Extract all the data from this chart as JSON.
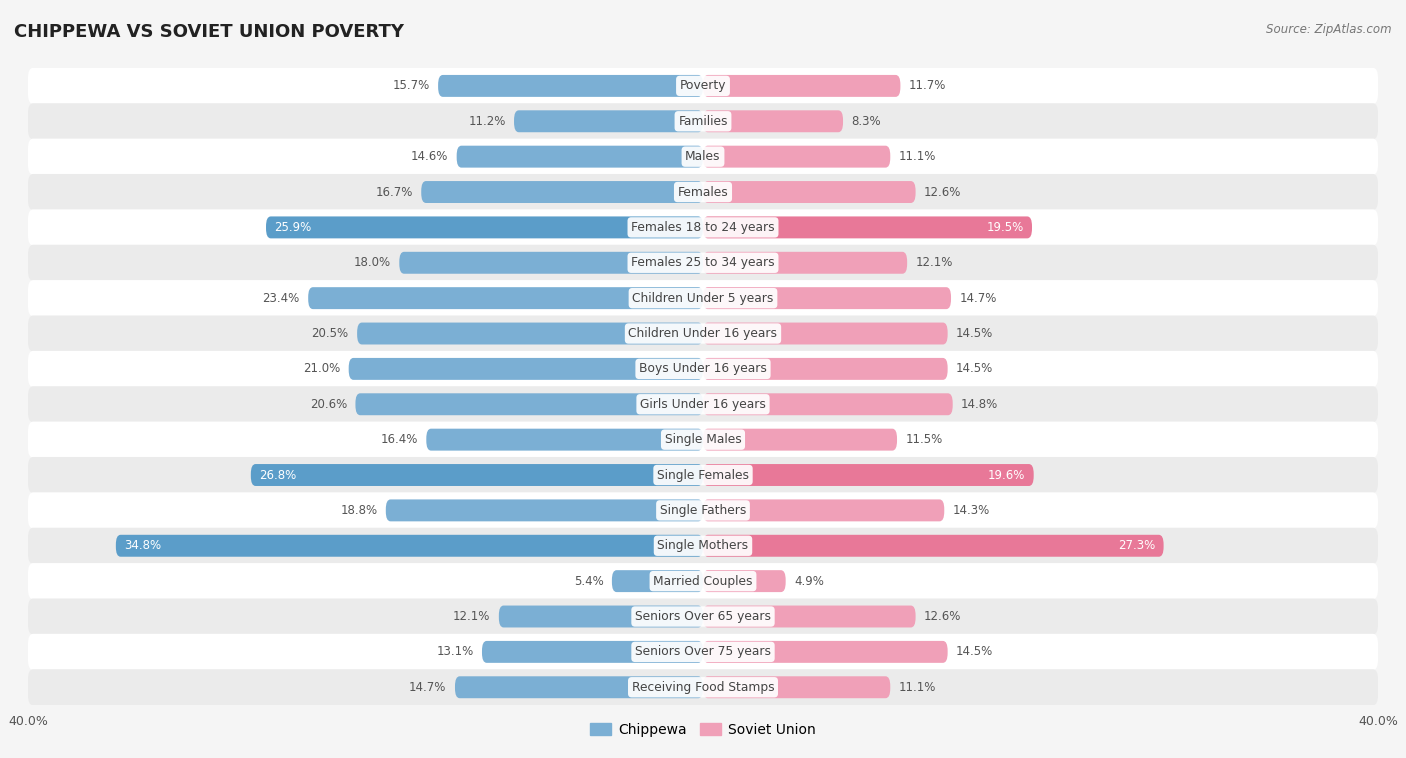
{
  "title": "CHIPPEWA VS SOVIET UNION POVERTY",
  "source": "Source: ZipAtlas.com",
  "categories": [
    "Poverty",
    "Families",
    "Males",
    "Females",
    "Females 18 to 24 years",
    "Females 25 to 34 years",
    "Children Under 5 years",
    "Children Under 16 years",
    "Boys Under 16 years",
    "Girls Under 16 years",
    "Single Males",
    "Single Females",
    "Single Fathers",
    "Single Mothers",
    "Married Couples",
    "Seniors Over 65 years",
    "Seniors Over 75 years",
    "Receiving Food Stamps"
  ],
  "chippewa": [
    15.7,
    11.2,
    14.6,
    16.7,
    25.9,
    18.0,
    23.4,
    20.5,
    21.0,
    20.6,
    16.4,
    26.8,
    18.8,
    34.8,
    5.4,
    12.1,
    13.1,
    14.7
  ],
  "soviet_union": [
    11.7,
    8.3,
    11.1,
    12.6,
    19.5,
    12.1,
    14.7,
    14.5,
    14.5,
    14.8,
    11.5,
    19.6,
    14.3,
    27.3,
    4.9,
    12.6,
    14.5,
    11.1
  ],
  "chippewa_color": "#7bafd4",
  "soviet_union_color": "#f0a0b8",
  "chippewa_highlight_color": "#5b9dc9",
  "soviet_union_highlight_color": "#e87898",
  "highlight_rows": [
    4,
    11,
    13
  ],
  "background_color": "#f5f5f5",
  "row_even_color": "#ffffff",
  "row_odd_color": "#ebebeb",
  "xlim": 40.0,
  "bar_height": 0.62,
  "label_fontsize": 8.8,
  "value_fontsize": 8.5,
  "legend_labels": [
    "Chippewa",
    "Soviet Union"
  ]
}
